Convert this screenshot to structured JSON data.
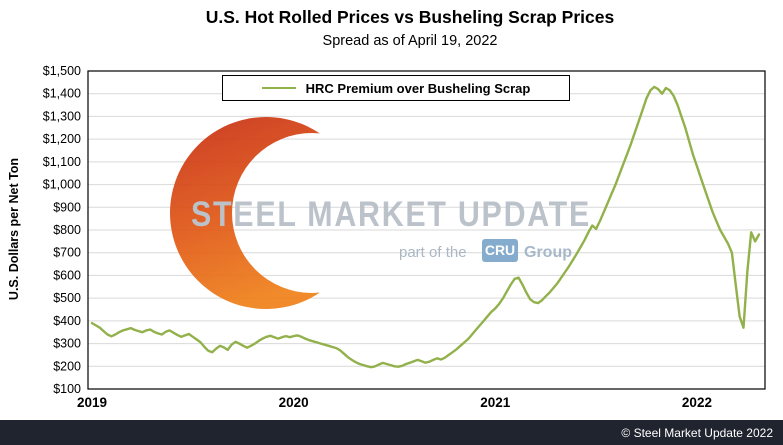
{
  "footer": {
    "copyright": "© Steel Market Update 2022"
  },
  "watermark": {
    "brand": "STEEL MARKET UPDATE",
    "tagline_prefix": "part of the",
    "tagline_box": "CRU",
    "tagline_suffix": "Group"
  },
  "chart_data": {
    "type": "line",
    "title": "U.S. Hot Rolled Prices vs Busheling Scrap Prices",
    "subtitle": "Spread as of April 19, 2022",
    "ylabel": "U.S. Dollars per Net Ton",
    "legend_label": "HRC Premium over Busheling Scrap",
    "legend_position": "top-center-inside",
    "grid": "horizontal",
    "line_color": "#92b14b",
    "ylim": [
      100,
      1500
    ],
    "y_ticks": [
      100,
      200,
      300,
      400,
      500,
      600,
      700,
      800,
      900,
      1000,
      1100,
      1200,
      1300,
      1400,
      1500
    ],
    "y_tick_labels": [
      "$100",
      "$200",
      "$300",
      "$400",
      "$500",
      "$600",
      "$700",
      "$800",
      "$900",
      "$1,000",
      "$1,100",
      "$1,200",
      "$1,300",
      "$1,400",
      "$1,500"
    ],
    "x_tick_labels": [
      "2019",
      "2020",
      "2021",
      "2022"
    ],
    "frequency": "weekly",
    "x_range": [
      "2019-01-01",
      "2022-04-19"
    ],
    "weeks_per_year": 52,
    "series": [
      {
        "name": "HRC Premium over Busheling Scrap",
        "values": [
          390,
          380,
          370,
          355,
          340,
          332,
          340,
          350,
          358,
          363,
          368,
          360,
          355,
          350,
          358,
          362,
          352,
          345,
          340,
          352,
          358,
          348,
          338,
          330,
          336,
          342,
          330,
          318,
          305,
          285,
          268,
          262,
          278,
          290,
          283,
          272,
          295,
          308,
          300,
          290,
          282,
          290,
          300,
          312,
          322,
          330,
          334,
          328,
          322,
          328,
          333,
          328,
          333,
          336,
          330,
          322,
          315,
          310,
          305,
          300,
          295,
          290,
          285,
          280,
          270,
          255,
          240,
          228,
          218,
          210,
          205,
          200,
          196,
          200,
          208,
          215,
          210,
          205,
          200,
          198,
          202,
          210,
          216,
          222,
          228,
          222,
          216,
          220,
          228,
          235,
          230,
          238,
          250,
          262,
          275,
          290,
          305,
          320,
          340,
          360,
          380,
          400,
          420,
          440,
          455,
          475,
          500,
          530,
          560,
          585,
          590,
          560,
          525,
          495,
          482,
          478,
          490,
          508,
          525,
          545,
          565,
          590,
          615,
          640,
          668,
          695,
          725,
          755,
          790,
          820,
          805,
          840,
          880,
          920,
          960,
          1000,
          1045,
          1090,
          1135,
          1180,
          1230,
          1280,
          1330,
          1380,
          1415,
          1430,
          1420,
          1400,
          1425,
          1415,
          1390,
          1350,
          1300,
          1250,
          1190,
          1130,
          1080,
          1030,
          980,
          930,
          880,
          840,
          800,
          770,
          740,
          700,
          560,
          420,
          370,
          620,
          790,
          750,
          780
        ]
      }
    ]
  }
}
